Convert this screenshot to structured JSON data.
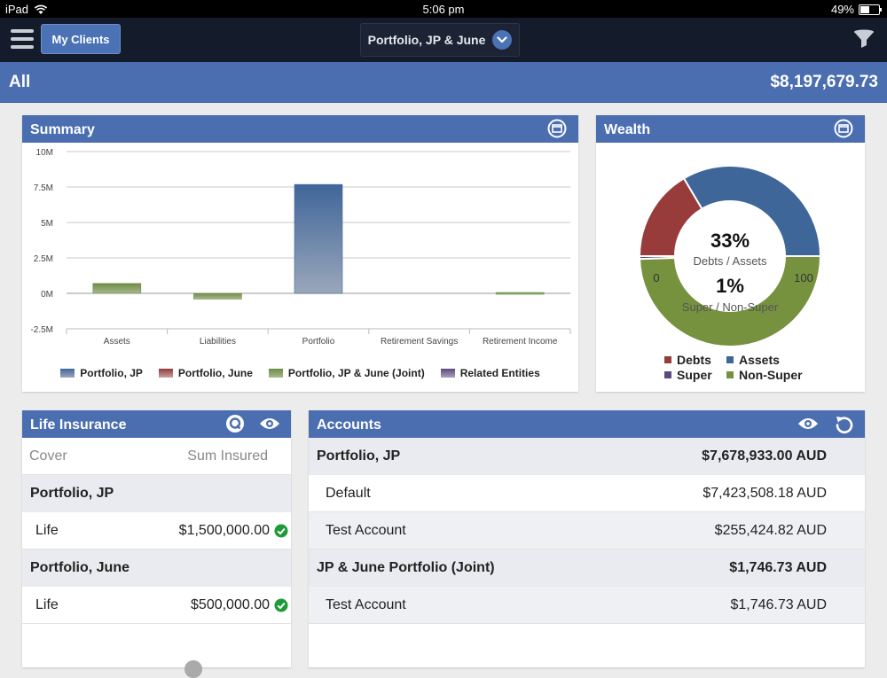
{
  "status": {
    "device": "iPad",
    "time": "5:06 pm",
    "battery": "49%",
    "battery_level": 0.49
  },
  "nav": {
    "my_clients": "My Clients",
    "portfolio": "Portfolio, JP & June"
  },
  "all": {
    "label": "All",
    "total": "$8,197,679.73"
  },
  "summary": {
    "title": "Summary",
    "chart_data": {
      "type": "bar",
      "categories": [
        "Assets",
        "Liabilities",
        "Portfolio",
        "Retirement Savings",
        "Retirement Income"
      ],
      "y_ticks": [
        "10M",
        "7.5M",
        "5M",
        "2.5M",
        "0M",
        "-2.5M"
      ],
      "ylim": [
        -2500000,
        10000000
      ],
      "series": [
        {
          "name": "Portfolio, JP",
          "color": "#3f6699",
          "values": [
            0,
            0,
            7678933,
            0,
            0
          ]
        },
        {
          "name": "Portfolio, June",
          "color": "#8f3b3b",
          "values": [
            0,
            0,
            0,
            0,
            0
          ]
        },
        {
          "name": "Portfolio, JP & June (Joint)",
          "color": "#6e8c45",
          "values": [
            700000,
            -400000,
            0,
            0,
            60000
          ]
        },
        {
          "name": "Related Entities",
          "color": "#5b4a7d",
          "values": [
            0,
            0,
            0,
            0,
            0
          ]
        }
      ]
    }
  },
  "wealth": {
    "title": "Wealth",
    "pct1": "33%",
    "label1": "Debts / Assets",
    "pct2": "1%",
    "label2": "Super / Non-Super",
    "min": "0",
    "max": "100",
    "debts_assets_ratio": 0.33,
    "super_ratio": 0.01,
    "legend": [
      {
        "name": "Debts",
        "color": "#983b3b"
      },
      {
        "name": "Assets",
        "color": "#3f6699"
      },
      {
        "name": "Super",
        "color": "#5b4a7d"
      },
      {
        "name": "Non-Super",
        "color": "#76923f"
      }
    ]
  },
  "life": {
    "title": "Life Insurance",
    "col_cover": "Cover",
    "col_sum": "Sum Insured",
    "groups": [
      {
        "name": "Portfolio, JP",
        "cover": "Life",
        "amount": "$1,500,000.00"
      },
      {
        "name": "Portfolio, June",
        "cover": "Life",
        "amount": "$500,000.00"
      }
    ]
  },
  "accounts": {
    "title": "Accounts",
    "rows": [
      {
        "name": "Portfolio, JP",
        "amount": "$7,678,933.00 AUD",
        "group": true
      },
      {
        "name": "Default",
        "amount": "$7,423,508.18 AUD",
        "group": false
      },
      {
        "name": "Test Account",
        "amount": "$255,424.82 AUD",
        "group": false
      },
      {
        "name": "JP & June Portfolio (Joint)",
        "amount": "$1,746.73 AUD",
        "group": true
      },
      {
        "name": "Test Account",
        "amount": "$1,746.73 AUD",
        "group": false
      }
    ]
  }
}
